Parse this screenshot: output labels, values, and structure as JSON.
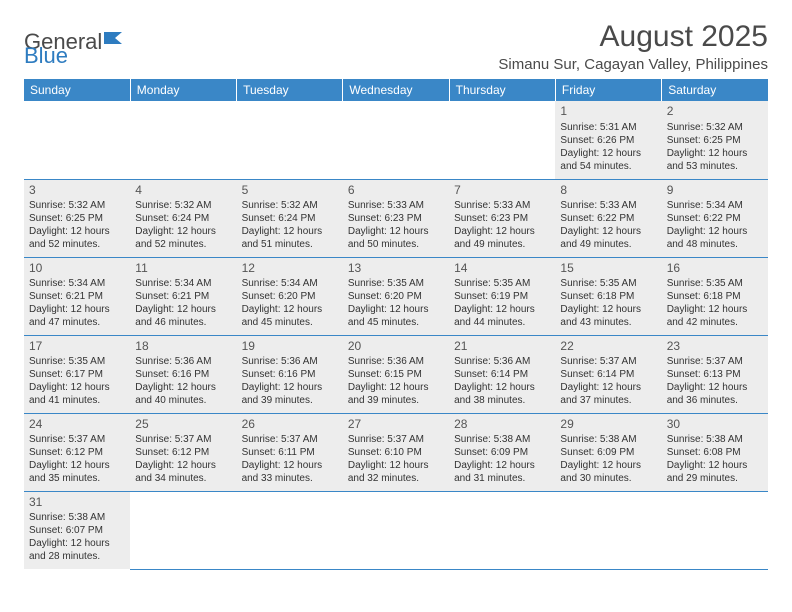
{
  "logo": {
    "text1": "General",
    "text2": "Blue"
  },
  "title": "August 2025",
  "location": "Simanu Sur, Cagayan Valley, Philippines",
  "colors": {
    "header_bg": "#3a87c7",
    "header_text": "#ffffff",
    "cell_bg": "#ededed",
    "border": "#3a87c7",
    "text": "#333333",
    "logo_gray": "#4a4a4a",
    "logo_blue": "#2e7cc0"
  },
  "weekdays": [
    "Sunday",
    "Monday",
    "Tuesday",
    "Wednesday",
    "Thursday",
    "Friday",
    "Saturday"
  ],
  "weeks": [
    [
      null,
      null,
      null,
      null,
      null,
      {
        "d": "1",
        "sr": "Sunrise: 5:31 AM",
        "ss": "Sunset: 6:26 PM",
        "dl1": "Daylight: 12 hours",
        "dl2": "and 54 minutes."
      },
      {
        "d": "2",
        "sr": "Sunrise: 5:32 AM",
        "ss": "Sunset: 6:25 PM",
        "dl1": "Daylight: 12 hours",
        "dl2": "and 53 minutes."
      }
    ],
    [
      {
        "d": "3",
        "sr": "Sunrise: 5:32 AM",
        "ss": "Sunset: 6:25 PM",
        "dl1": "Daylight: 12 hours",
        "dl2": "and 52 minutes."
      },
      {
        "d": "4",
        "sr": "Sunrise: 5:32 AM",
        "ss": "Sunset: 6:24 PM",
        "dl1": "Daylight: 12 hours",
        "dl2": "and 52 minutes."
      },
      {
        "d": "5",
        "sr": "Sunrise: 5:32 AM",
        "ss": "Sunset: 6:24 PM",
        "dl1": "Daylight: 12 hours",
        "dl2": "and 51 minutes."
      },
      {
        "d": "6",
        "sr": "Sunrise: 5:33 AM",
        "ss": "Sunset: 6:23 PM",
        "dl1": "Daylight: 12 hours",
        "dl2": "and 50 minutes."
      },
      {
        "d": "7",
        "sr": "Sunrise: 5:33 AM",
        "ss": "Sunset: 6:23 PM",
        "dl1": "Daylight: 12 hours",
        "dl2": "and 49 minutes."
      },
      {
        "d": "8",
        "sr": "Sunrise: 5:33 AM",
        "ss": "Sunset: 6:22 PM",
        "dl1": "Daylight: 12 hours",
        "dl2": "and 49 minutes."
      },
      {
        "d": "9",
        "sr": "Sunrise: 5:34 AM",
        "ss": "Sunset: 6:22 PM",
        "dl1": "Daylight: 12 hours",
        "dl2": "and 48 minutes."
      }
    ],
    [
      {
        "d": "10",
        "sr": "Sunrise: 5:34 AM",
        "ss": "Sunset: 6:21 PM",
        "dl1": "Daylight: 12 hours",
        "dl2": "and 47 minutes."
      },
      {
        "d": "11",
        "sr": "Sunrise: 5:34 AM",
        "ss": "Sunset: 6:21 PM",
        "dl1": "Daylight: 12 hours",
        "dl2": "and 46 minutes."
      },
      {
        "d": "12",
        "sr": "Sunrise: 5:34 AM",
        "ss": "Sunset: 6:20 PM",
        "dl1": "Daylight: 12 hours",
        "dl2": "and 45 minutes."
      },
      {
        "d": "13",
        "sr": "Sunrise: 5:35 AM",
        "ss": "Sunset: 6:20 PM",
        "dl1": "Daylight: 12 hours",
        "dl2": "and 45 minutes."
      },
      {
        "d": "14",
        "sr": "Sunrise: 5:35 AM",
        "ss": "Sunset: 6:19 PM",
        "dl1": "Daylight: 12 hours",
        "dl2": "and 44 minutes."
      },
      {
        "d": "15",
        "sr": "Sunrise: 5:35 AM",
        "ss": "Sunset: 6:18 PM",
        "dl1": "Daylight: 12 hours",
        "dl2": "and 43 minutes."
      },
      {
        "d": "16",
        "sr": "Sunrise: 5:35 AM",
        "ss": "Sunset: 6:18 PM",
        "dl1": "Daylight: 12 hours",
        "dl2": "and 42 minutes."
      }
    ],
    [
      {
        "d": "17",
        "sr": "Sunrise: 5:35 AM",
        "ss": "Sunset: 6:17 PM",
        "dl1": "Daylight: 12 hours",
        "dl2": "and 41 minutes."
      },
      {
        "d": "18",
        "sr": "Sunrise: 5:36 AM",
        "ss": "Sunset: 6:16 PM",
        "dl1": "Daylight: 12 hours",
        "dl2": "and 40 minutes."
      },
      {
        "d": "19",
        "sr": "Sunrise: 5:36 AM",
        "ss": "Sunset: 6:16 PM",
        "dl1": "Daylight: 12 hours",
        "dl2": "and 39 minutes."
      },
      {
        "d": "20",
        "sr": "Sunrise: 5:36 AM",
        "ss": "Sunset: 6:15 PM",
        "dl1": "Daylight: 12 hours",
        "dl2": "and 39 minutes."
      },
      {
        "d": "21",
        "sr": "Sunrise: 5:36 AM",
        "ss": "Sunset: 6:14 PM",
        "dl1": "Daylight: 12 hours",
        "dl2": "and 38 minutes."
      },
      {
        "d": "22",
        "sr": "Sunrise: 5:37 AM",
        "ss": "Sunset: 6:14 PM",
        "dl1": "Daylight: 12 hours",
        "dl2": "and 37 minutes."
      },
      {
        "d": "23",
        "sr": "Sunrise: 5:37 AM",
        "ss": "Sunset: 6:13 PM",
        "dl1": "Daylight: 12 hours",
        "dl2": "and 36 minutes."
      }
    ],
    [
      {
        "d": "24",
        "sr": "Sunrise: 5:37 AM",
        "ss": "Sunset: 6:12 PM",
        "dl1": "Daylight: 12 hours",
        "dl2": "and 35 minutes."
      },
      {
        "d": "25",
        "sr": "Sunrise: 5:37 AM",
        "ss": "Sunset: 6:12 PM",
        "dl1": "Daylight: 12 hours",
        "dl2": "and 34 minutes."
      },
      {
        "d": "26",
        "sr": "Sunrise: 5:37 AM",
        "ss": "Sunset: 6:11 PM",
        "dl1": "Daylight: 12 hours",
        "dl2": "and 33 minutes."
      },
      {
        "d": "27",
        "sr": "Sunrise: 5:37 AM",
        "ss": "Sunset: 6:10 PM",
        "dl1": "Daylight: 12 hours",
        "dl2": "and 32 minutes."
      },
      {
        "d": "28",
        "sr": "Sunrise: 5:38 AM",
        "ss": "Sunset: 6:09 PM",
        "dl1": "Daylight: 12 hours",
        "dl2": "and 31 minutes."
      },
      {
        "d": "29",
        "sr": "Sunrise: 5:38 AM",
        "ss": "Sunset: 6:09 PM",
        "dl1": "Daylight: 12 hours",
        "dl2": "and 30 minutes."
      },
      {
        "d": "30",
        "sr": "Sunrise: 5:38 AM",
        "ss": "Sunset: 6:08 PM",
        "dl1": "Daylight: 12 hours",
        "dl2": "and 29 minutes."
      }
    ],
    [
      {
        "d": "31",
        "sr": "Sunrise: 5:38 AM",
        "ss": "Sunset: 6:07 PM",
        "dl1": "Daylight: 12 hours",
        "dl2": "and 28 minutes."
      },
      null,
      null,
      null,
      null,
      null,
      null
    ]
  ]
}
